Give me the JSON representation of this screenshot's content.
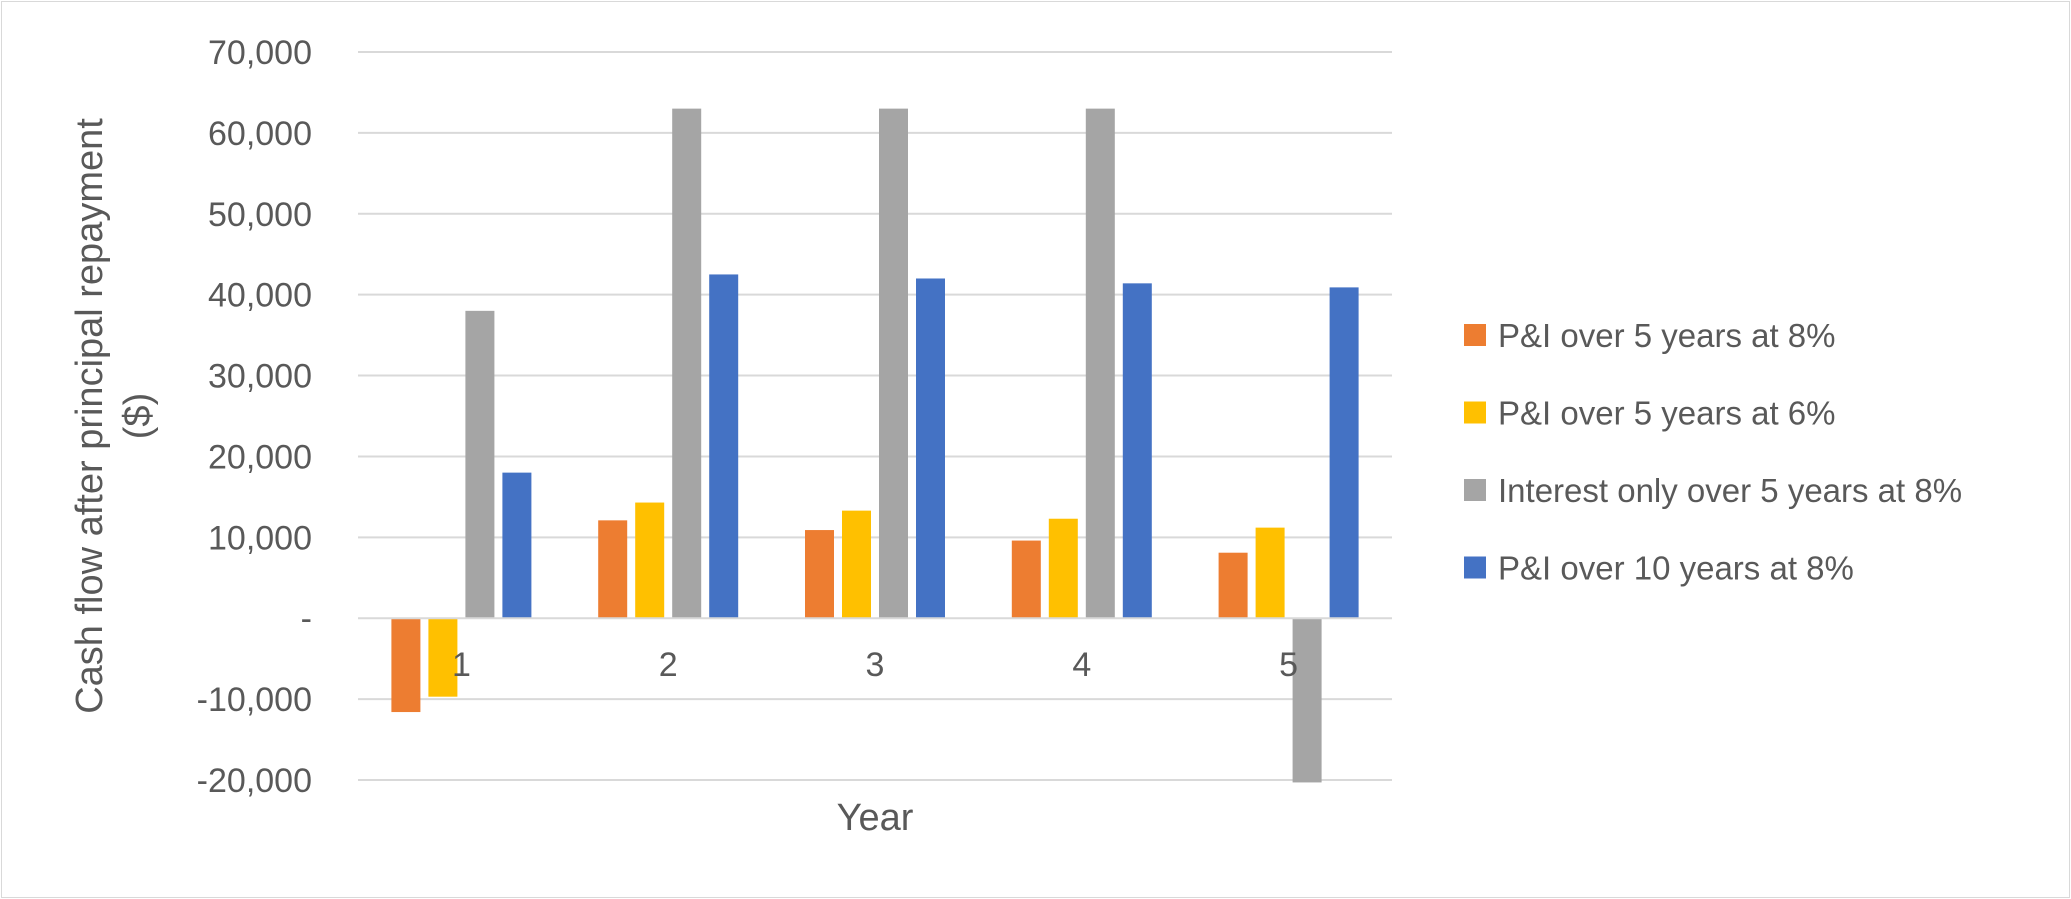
{
  "chart_data": {
    "type": "bar",
    "title": "",
    "xlabel": "Year",
    "ylabel": "Cash flow after principal repayment ($)",
    "ylabel_lines": [
      "Cash flow after principal repayment",
      "($)"
    ],
    "categories": [
      "1",
      "2",
      "3",
      "4",
      "5"
    ],
    "ylim": [
      -20000,
      70000
    ],
    "yticks": [
      -20000,
      -10000,
      0,
      10000,
      20000,
      30000,
      40000,
      50000,
      60000,
      70000
    ],
    "ytick_labels": [
      "-20,000",
      "-10,000",
      "-",
      "10,000",
      "20,000",
      "30,000",
      "40,000",
      "50,000",
      "60,000",
      "70,000"
    ],
    "grid": true,
    "legend_position": "right",
    "series": [
      {
        "name": "P&I over 5 years at 8%",
        "color": "#ED7D31",
        "values": [
          -11600,
          12100,
          10900,
          9600,
          8100
        ]
      },
      {
        "name": "P&I over 5 years at 6%",
        "color": "#FFC000",
        "values": [
          -9700,
          14300,
          13300,
          12300,
          11200
        ]
      },
      {
        "name": "Interest only over 5 years at 8%",
        "color": "#A5A5A5",
        "values": [
          38000,
          63000,
          63000,
          63000,
          -20300
        ]
      },
      {
        "name": "P&I over 10 years at 8%",
        "color": "#4472C4",
        "values": [
          18000,
          42500,
          42000,
          41400,
          40900
        ]
      }
    ]
  }
}
